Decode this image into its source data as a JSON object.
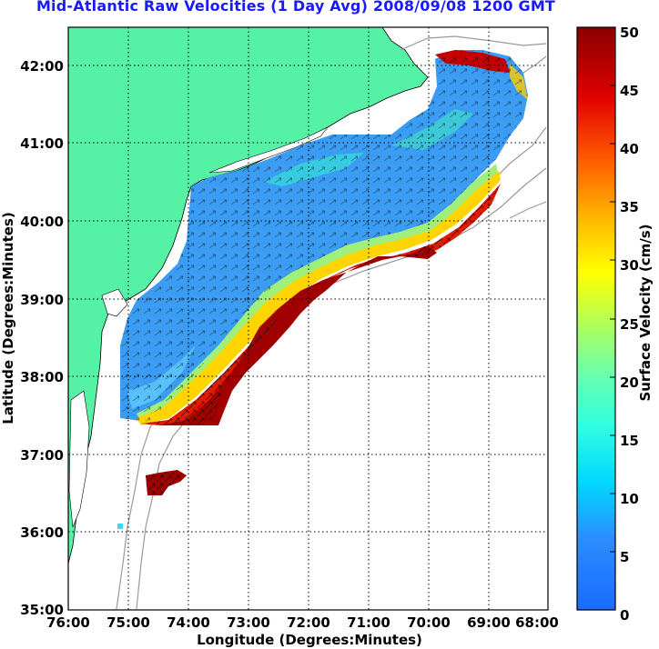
{
  "title": "Mid-Atlantic Raw Velocities (1 Day Avg) 2008/09/08 1200 GMT",
  "map": {
    "x_axis_label": "Longitude (Degrees:Minutes)",
    "y_axis_label": "Latitude (Degrees:Minutes)",
    "x_ticks": [
      "76:00",
      "75:00",
      "74:00",
      "73:00",
      "72:00",
      "71:00",
      "70:00",
      "69:00",
      "68:00"
    ],
    "y_ticks": [
      "42:00",
      "41:00",
      "40:00",
      "39:00",
      "38:00",
      "37:00",
      "36:00",
      "35:00"
    ],
    "lon_range": [
      -76,
      -68
    ],
    "lat_range": [
      35,
      42.5
    ],
    "grid": "dotted"
  },
  "colorbar": {
    "label": "Surface Velocity (cm/s)",
    "ticks": [
      "0",
      "5",
      "10",
      "15",
      "20",
      "25",
      "30",
      "35",
      "40",
      "45",
      "50"
    ],
    "range": [
      0,
      50
    ],
    "colormap": "jet"
  },
  "colors": {
    "land": "#55f2a6",
    "ocean": "#ffffff",
    "title": "#1a1aff",
    "bathymetry": "#9a9a9a"
  }
}
